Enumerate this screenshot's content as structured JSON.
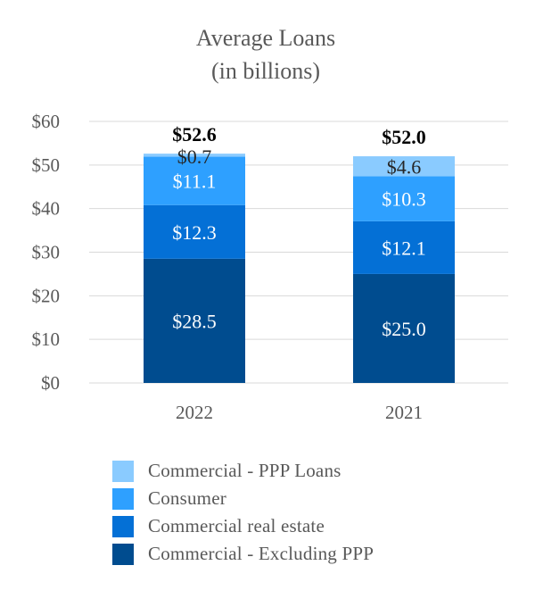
{
  "chart_data": {
    "type": "bar",
    "stacked": true,
    "title": "Average Loans",
    "subtitle": "(in billions)",
    "xlabel": "",
    "ylabel": "",
    "ylim": [
      0,
      60
    ],
    "yticks": [
      0,
      10,
      20,
      30,
      40,
      50,
      60
    ],
    "ytick_labels": [
      "$0",
      "$10",
      "$20",
      "$30",
      "$40",
      "$50",
      "$60"
    ],
    "grid": true,
    "legend_position": "bottom",
    "categories": [
      "2022",
      "2021"
    ],
    "totals": [
      52.6,
      52.0
    ],
    "total_labels": [
      "$52.6",
      "$52.0"
    ],
    "series": [
      {
        "name": "Commercial - Excluding PPP",
        "values": [
          28.5,
          25.0
        ],
        "labels": [
          "$28.5",
          "$25.0"
        ],
        "color": "#004c8f"
      },
      {
        "name": "Commercial real estate",
        "values": [
          12.3,
          12.1
        ],
        "labels": [
          "$12.3",
          "$12.1"
        ],
        "color": "#0470d6"
      },
      {
        "name": "Consumer",
        "values": [
          11.1,
          10.3
        ],
        "labels": [
          "$11.1",
          "$10.3"
        ],
        "color": "#2ea0ff"
      },
      {
        "name": "Commercial - PPP Loans",
        "values": [
          0.7,
          4.6
        ],
        "labels": [
          "$0.7",
          "$4.6"
        ],
        "color": "#8acbff"
      }
    ],
    "label_colors": {
      "segment": "#ffffff",
      "light_segment": "#262626",
      "axis": "#595959",
      "total": "#000000",
      "grid": "#d9d9d9"
    }
  }
}
